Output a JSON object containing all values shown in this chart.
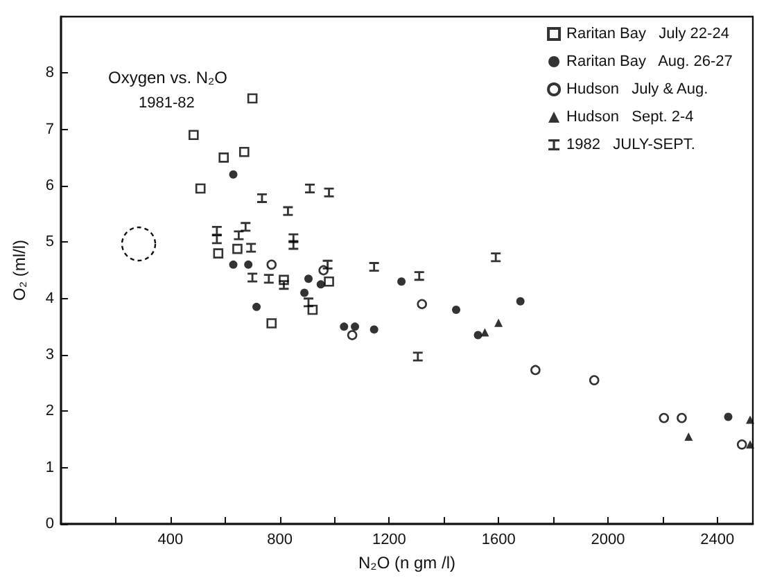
{
  "chart_data": {
    "type": "scatter",
    "xlabel": "N₂O (n gm /l)",
    "ylabel": "O₂ (ml/l)",
    "annotations": [
      "Oxygen vs. N₂O",
      "1981-82"
    ],
    "xlim": [
      0,
      2530
    ],
    "ylim": [
      0,
      9
    ],
    "xticks": [
      {
        "value": 200,
        "label": null
      },
      400,
      {
        "value": 600,
        "label": null
      },
      800,
      {
        "value": 1000,
        "label": null
      },
      1200,
      {
        "value": 1400,
        "label": null
      },
      1600,
      {
        "value": 1800,
        "label": null
      },
      2000,
      {
        "value": 2200,
        "label": null
      },
      2400
    ],
    "yticks": [
      0,
      1,
      2,
      3,
      4,
      5,
      6,
      7,
      8
    ],
    "grid": false,
    "legend": "top right",
    "series": [
      {
        "name": "Raritan Bay   July 22-24",
        "color": "#000000",
        "marker": "square",
        "x": [
          700,
          485,
          595,
          670,
          510,
          575,
          645,
          815,
          980,
          770,
          920
        ],
        "values": [
          7.55,
          6.9,
          6.5,
          6.6,
          5.95,
          4.8,
          4.88,
          4.33,
          4.3,
          3.56,
          3.8
        ]
      },
      {
        "name": "Raritan Bay   Aug. 26-27",
        "color": "#000000",
        "marker": "circle",
        "x": [
          630,
          630,
          685,
          715,
          890,
          905,
          950,
          1035,
          1075,
          1145,
          1245,
          1445,
          1525,
          1680,
          2440
        ],
        "values": [
          6.2,
          4.6,
          4.6,
          3.85,
          4.1,
          4.35,
          4.25,
          3.5,
          3.5,
          3.45,
          4.3,
          3.8,
          3.35,
          3.95,
          1.9
        ]
      },
      {
        "name": "Hudson   July & Aug.",
        "color": "#000000",
        "marker": "circle",
        "x": [
          770,
          960,
          1065,
          1320,
          1735,
          1950,
          2205,
          2270,
          2490
        ],
        "values": [
          4.6,
          4.5,
          3.35,
          3.9,
          2.73,
          2.55,
          1.88,
          1.88,
          1.41
        ]
      },
      {
        "name": "Hudson   Sept. 2-4",
        "color": "#000000",
        "marker": "triangle",
        "x": [
          1550,
          1600,
          2295,
          2520,
          2520
        ],
        "values": [
          3.4,
          3.57,
          1.55,
          1.85,
          1.41
        ]
      },
      {
        "name": "1982   JULY-SEPT.",
        "color": "#000000",
        "marker": "cross",
        "x": [
          570,
          570,
          650,
          675,
          695,
          735,
          830,
          850,
          850,
          910,
          980,
          1145,
          975,
          700,
          760,
          815,
          905,
          1310,
          1590,
          1305
        ],
        "values": [
          5.2,
          5.05,
          5.12,
          5.27,
          4.9,
          5.78,
          5.55,
          5.07,
          4.95,
          5.95,
          5.88,
          4.56,
          4.6,
          4.37,
          4.35,
          4.24,
          3.93,
          4.4,
          4.73,
          2.97
        ]
      }
    ]
  }
}
